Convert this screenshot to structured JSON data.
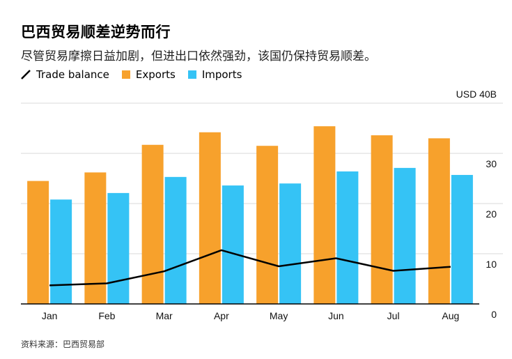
{
  "title": "巴西贸易顺差逆势而行",
  "subtitle": "尽管贸易摩擦日益加剧，但进出口依然强劲，该国仍保持贸易顺差。",
  "source": "资料来源：巴西贸易部",
  "colors": {
    "exports": "#F7A12C",
    "imports": "#35C3F5",
    "trade_balance": "#000000",
    "grid": "#D9D9D9",
    "axis": "#000000"
  },
  "chart_data": {
    "type": "bar",
    "categories": [
      "Jan",
      "Feb",
      "Mar",
      "Apr",
      "May",
      "Jun",
      "Jul",
      "Aug"
    ],
    "series": [
      {
        "name": "Exports",
        "type": "bar",
        "values": [
          24.5,
          26.2,
          31.7,
          34.2,
          31.5,
          35.4,
          33.6,
          33.0
        ]
      },
      {
        "name": "Imports",
        "type": "bar",
        "values": [
          20.8,
          22.1,
          25.3,
          23.6,
          24.0,
          26.4,
          27.1,
          25.7
        ]
      },
      {
        "name": "Trade balance",
        "type": "line",
        "values": [
          3.7,
          4.1,
          6.5,
          10.7,
          7.5,
          9.1,
          6.6,
          7.4
        ]
      }
    ],
    "y_axis": {
      "ticks": [
        0,
        10,
        20,
        30,
        40
      ],
      "tick_labels": [
        "0",
        "10",
        "20",
        "30",
        "USD 40B"
      ],
      "ylim": [
        0,
        40
      ],
      "position": "right"
    },
    "legend": {
      "entries": [
        "Trade balance",
        "Exports",
        "Imports"
      ],
      "placement": "top-left"
    },
    "grid": true
  }
}
